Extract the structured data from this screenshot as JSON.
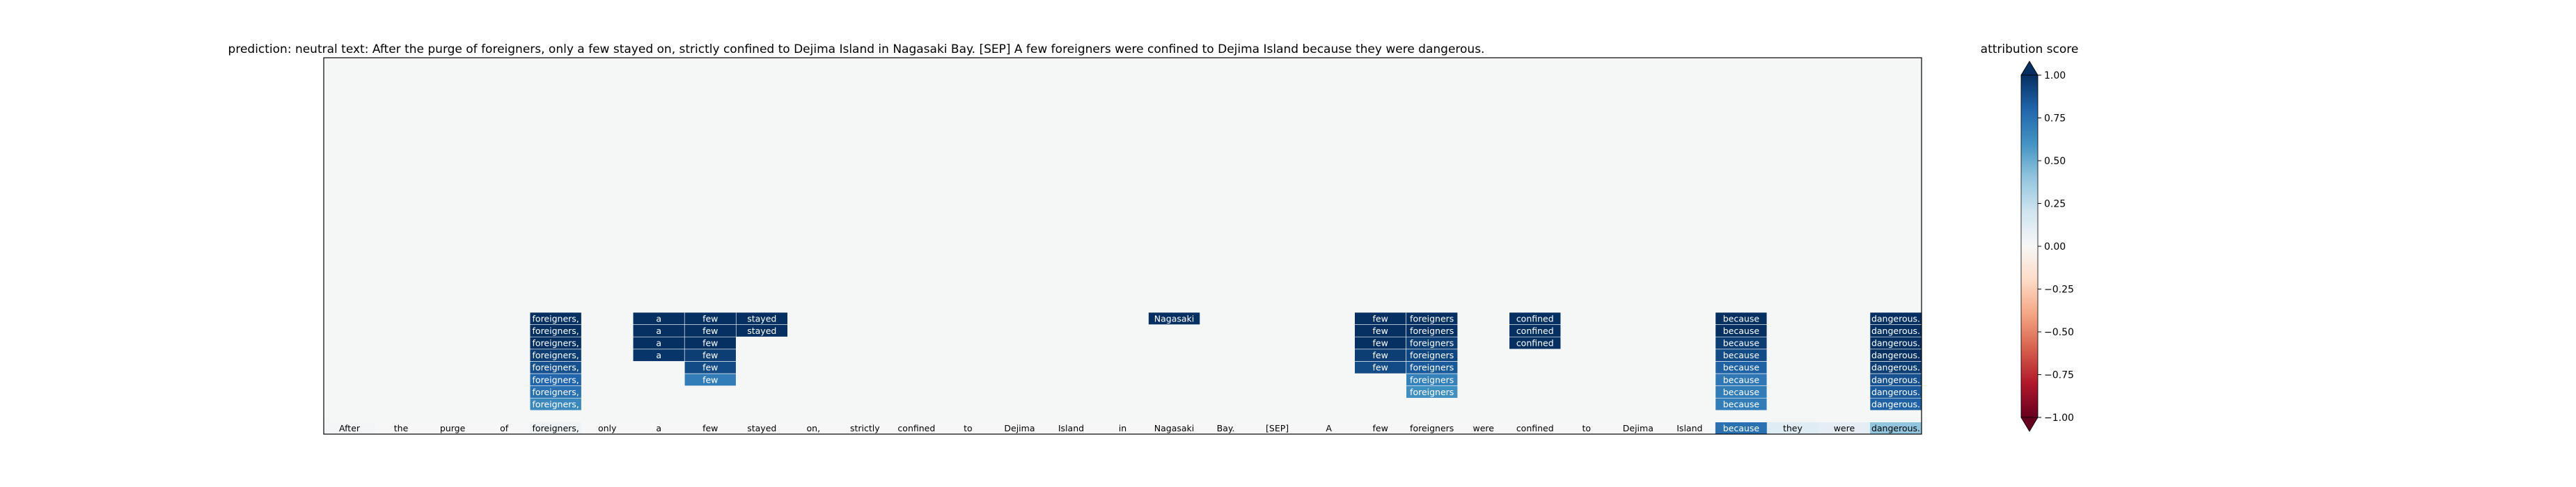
{
  "chart_data": {
    "type": "heatmap",
    "title": "prediction:  neutral     text:  After the purge of foreigners, only a few stayed on, strictly confined to Dejima Island in Nagasaki Bay. [SEP] A few foreigners were confined to Dejima Island because they were dangerous.",
    "tokens": [
      "After",
      "the",
      "purge",
      "of",
      "foreigners,",
      "only",
      "a",
      "few",
      "stayed",
      "on,",
      "strictly",
      "confined",
      "to",
      "Dejima",
      "Island",
      "in",
      "Nagasaki",
      "Bay.",
      "[SEP]",
      "A",
      "few",
      "foreigners",
      "were",
      "confined",
      "to",
      "Dejima",
      "Island",
      "because",
      "they",
      "were",
      "dangerous."
    ],
    "base_scores": [
      0.02,
      0.0,
      0.0,
      0.0,
      0.05,
      0.0,
      0.0,
      0.0,
      0.0,
      0.0,
      0.0,
      0.0,
      0.0,
      0.0,
      0.0,
      0.0,
      0.0,
      0.0,
      0.0,
      0.0,
      0.0,
      0.0,
      0.0,
      0.0,
      0.0,
      0.0,
      0.0,
      0.75,
      0.12,
      0.1,
      0.4
    ],
    "layer_scores": [
      [
        0.0,
        0.0,
        0.0,
        0.0,
        0.65,
        0.0,
        0.0,
        0.0,
        0.0,
        0.0,
        0.0,
        0.0,
        0.0,
        0.0,
        0.0,
        0.0,
        0.0,
        0.0,
        0.0,
        0.0,
        0.0,
        0.0,
        0.0,
        0.0,
        0.0,
        0.0,
        0.0,
        0.7,
        0.0,
        0.0,
        0.82
      ],
      [
        0.0,
        0.0,
        0.0,
        0.0,
        0.75,
        0.0,
        0.0,
        0.0,
        0.0,
        0.0,
        0.0,
        0.0,
        0.0,
        0.0,
        0.0,
        0.0,
        0.0,
        0.0,
        0.0,
        0.0,
        0.0,
        0.62,
        0.0,
        0.0,
        0.0,
        0.0,
        0.0,
        0.7,
        0.0,
        0.0,
        0.85
      ],
      [
        0.0,
        0.0,
        0.0,
        0.0,
        0.8,
        0.0,
        0.0,
        0.7,
        0.0,
        0.0,
        0.0,
        0.0,
        0.0,
        0.0,
        0.0,
        0.0,
        0.0,
        0.0,
        0.0,
        0.0,
        0.0,
        0.68,
        0.0,
        0.0,
        0.0,
        0.0,
        0.0,
        0.72,
        0.0,
        0.0,
        0.88
      ],
      [
        0.0,
        0.0,
        0.0,
        0.0,
        0.88,
        0.0,
        0.0,
        0.9,
        0.0,
        0.0,
        0.0,
        0.0,
        0.0,
        0.0,
        0.0,
        0.0,
        0.0,
        0.0,
        0.0,
        0.0,
        0.9,
        0.85,
        0.0,
        0.0,
        0.0,
        0.0,
        0.0,
        0.82,
        0.0,
        0.0,
        0.95
      ],
      [
        0.0,
        0.0,
        0.0,
        0.0,
        0.95,
        0.0,
        0.98,
        0.95,
        0.0,
        0.0,
        0.0,
        0.0,
        0.0,
        0.0,
        0.0,
        0.0,
        0.0,
        0.0,
        0.0,
        0.0,
        0.95,
        0.92,
        0.0,
        0.0,
        0.0,
        0.0,
        0.0,
        0.9,
        0.0,
        0.0,
        1.0
      ],
      [
        0.0,
        0.0,
        0.0,
        0.0,
        1.0,
        0.0,
        1.0,
        1.0,
        0.0,
        0.0,
        0.0,
        0.0,
        0.0,
        0.0,
        0.0,
        0.0,
        0.0,
        0.0,
        0.0,
        0.0,
        1.0,
        0.95,
        0.0,
        1.0,
        0.0,
        0.0,
        0.0,
        0.95,
        0.0,
        0.0,
        1.0
      ],
      [
        0.0,
        0.0,
        0.0,
        0.0,
        1.0,
        0.0,
        1.0,
        1.0,
        1.0,
        0.0,
        0.0,
        0.0,
        0.0,
        0.0,
        0.0,
        0.0,
        0.0,
        0.0,
        0.0,
        0.0,
        1.0,
        1.0,
        0.0,
        1.0,
        0.0,
        0.0,
        0.0,
        1.0,
        0.0,
        0.0,
        1.0
      ],
      [
        0.0,
        0.0,
        0.0,
        0.0,
        1.0,
        0.0,
        1.0,
        1.0,
        1.0,
        0.0,
        0.0,
        0.0,
        0.0,
        0.0,
        0.0,
        0.0,
        1.0,
        0.0,
        0.0,
        0.0,
        1.0,
        1.0,
        0.0,
        1.0,
        0.0,
        0.0,
        0.0,
        1.0,
        0.0,
        0.0,
        1.0
      ]
    ],
    "colorbar": {
      "label": "attribution score",
      "min": -1.0,
      "max": 1.0,
      "ticks": [
        "1.00",
        "0.75",
        "0.50",
        "0.25",
        "0.00",
        "−0.25",
        "−0.50",
        "−0.75",
        "−1.00"
      ],
      "colormap": "RdBu",
      "extend": "both"
    },
    "background_color": "#f5f6f6",
    "grid": false
  }
}
